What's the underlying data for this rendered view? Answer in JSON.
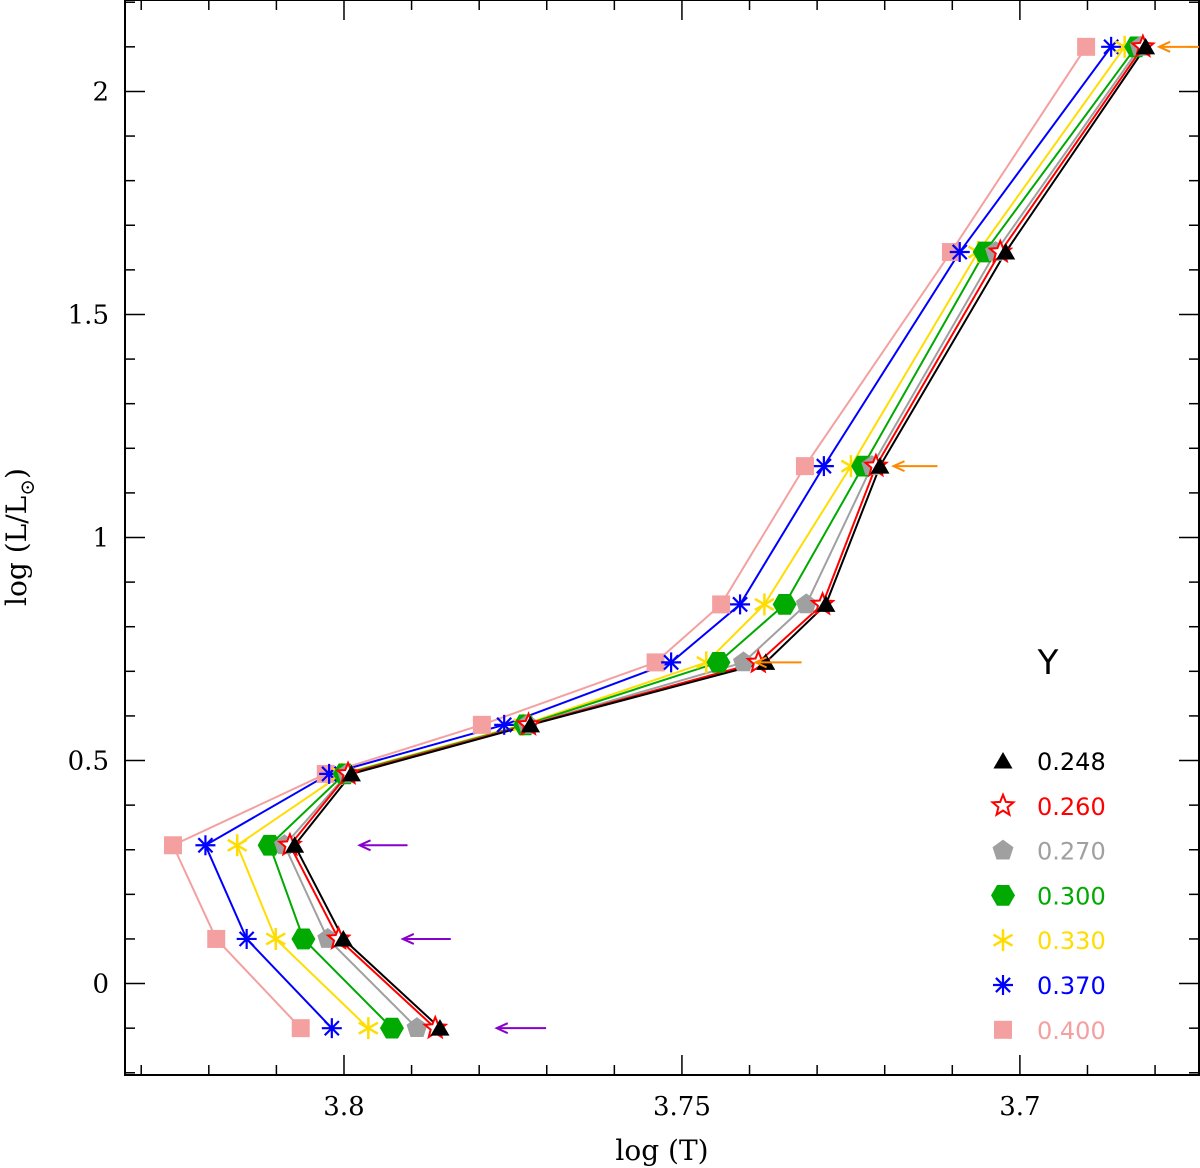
{
  "chart_data": {
    "type": "line",
    "xlabel": "log (T)",
    "ylabel_prefix": "log (L/L",
    "ylabel_suffix": ")",
    "ylabel_subscript": "⊙",
    "xlim": [
      3.8324,
      3.6735
    ],
    "ylim": [
      -0.205,
      2.205
    ],
    "x_ticks": [
      3.8,
      3.75,
      3.7
    ],
    "x_tick_labels": [
      "3.8",
      "3.75",
      "3.7"
    ],
    "y_ticks": [
      0,
      0.5,
      1,
      1.5,
      2
    ],
    "y_tick_labels": [
      "0",
      "0.5",
      "1",
      "1.5",
      "2"
    ],
    "legend_title": "Y",
    "series": [
      {
        "name": "0.248",
        "color": "#000000",
        "marker": "triangle",
        "x": [
          3.6814,
          3.7021,
          3.7207,
          3.7287,
          3.7376,
          3.7724,
          3.7989,
          3.8073,
          3.8001,
          3.7858
        ],
        "y": [
          2.1,
          1.64,
          1.16,
          0.85,
          0.72,
          0.58,
          0.47,
          0.31,
          0.1,
          -0.1
        ]
      },
      {
        "name": "0.260",
        "color": "#ff0000",
        "marker": "star5",
        "x": [
          3.6818,
          3.7029,
          3.7213,
          3.7292,
          3.7387,
          3.7727,
          3.7994,
          3.808,
          3.8008,
          3.7865
        ],
        "y": [
          2.1,
          1.64,
          1.16,
          0.85,
          0.72,
          0.58,
          0.47,
          0.31,
          0.1,
          -0.1
        ]
      },
      {
        "name": "0.270",
        "color": "#a0a0a0",
        "marker": "pentagon",
        "x": [
          3.6822,
          3.7036,
          3.7219,
          3.7316,
          3.7409,
          3.7728,
          3.7995,
          3.8088,
          3.8024,
          3.7892
        ],
        "y": [
          2.1,
          1.64,
          1.16,
          0.85,
          0.72,
          0.58,
          0.47,
          0.31,
          0.1,
          -0.1
        ]
      },
      {
        "name": "0.300",
        "color": "#00aa00",
        "marker": "hexagon",
        "x": [
          3.6828,
          3.7052,
          3.7232,
          3.7348,
          3.7446,
          3.7732,
          3.7999,
          3.811,
          3.806,
          3.7929
        ],
        "y": [
          2.1,
          1.64,
          1.16,
          0.85,
          0.72,
          0.58,
          0.47,
          0.31,
          0.1,
          -0.1
        ]
      },
      {
        "name": "0.330",
        "color": "#ffdd00",
        "marker": "star6",
        "x": [
          3.6845,
          3.7062,
          3.725,
          3.7378,
          3.7464,
          3.7735,
          3.8003,
          3.8158,
          3.8101,
          3.7964
        ],
        "y": [
          2.1,
          1.64,
          1.16,
          0.85,
          0.72,
          0.58,
          0.47,
          0.31,
          0.1,
          -0.1
        ]
      },
      {
        "name": "0.370",
        "color": "#0000ff",
        "marker": "asterisk",
        "x": [
          3.6865,
          3.7089,
          3.729,
          3.7414,
          3.7516,
          3.7763,
          3.8022,
          3.8205,
          3.8144,
          3.8018
        ],
        "y": [
          2.1,
          1.64,
          1.16,
          0.85,
          0.72,
          0.58,
          0.47,
          0.31,
          0.1,
          -0.1
        ]
      },
      {
        "name": "0.400",
        "color": "#f4a0a0",
        "marker": "square",
        "x": [
          3.6902,
          3.7102,
          3.7318,
          3.7442,
          3.7539,
          3.7796,
          3.8027,
          3.8253,
          3.8189,
          3.8064
        ],
        "y": [
          2.1,
          1.64,
          1.16,
          0.85,
          0.72,
          0.58,
          0.47,
          0.31,
          0.1,
          -0.1
        ]
      }
    ],
    "annotations": [
      {
        "type": "arrow",
        "color": "#ff8800",
        "x_tail": 3.6735,
        "x_head": 3.6794,
        "y": 2.1
      },
      {
        "type": "arrow",
        "color": "#ff8800",
        "x_tail": 3.7122,
        "x_head": 3.7187,
        "y": 1.16
      },
      {
        "type": "arrow",
        "color": "#ff8800",
        "x_tail": 3.7323,
        "x_head": 3.7391,
        "y": 0.72
      },
      {
        "type": "arrow",
        "color": "#8800cc",
        "x_tail": 3.7906,
        "x_head": 3.7977,
        "y": 0.31
      },
      {
        "type": "arrow",
        "color": "#8800cc",
        "x_tail": 3.7842,
        "x_head": 3.7913,
        "y": 0.1
      },
      {
        "type": "arrow",
        "color": "#8800cc",
        "x_tail": 3.7701,
        "x_head": 3.7774,
        "y": -0.1
      }
    ]
  }
}
